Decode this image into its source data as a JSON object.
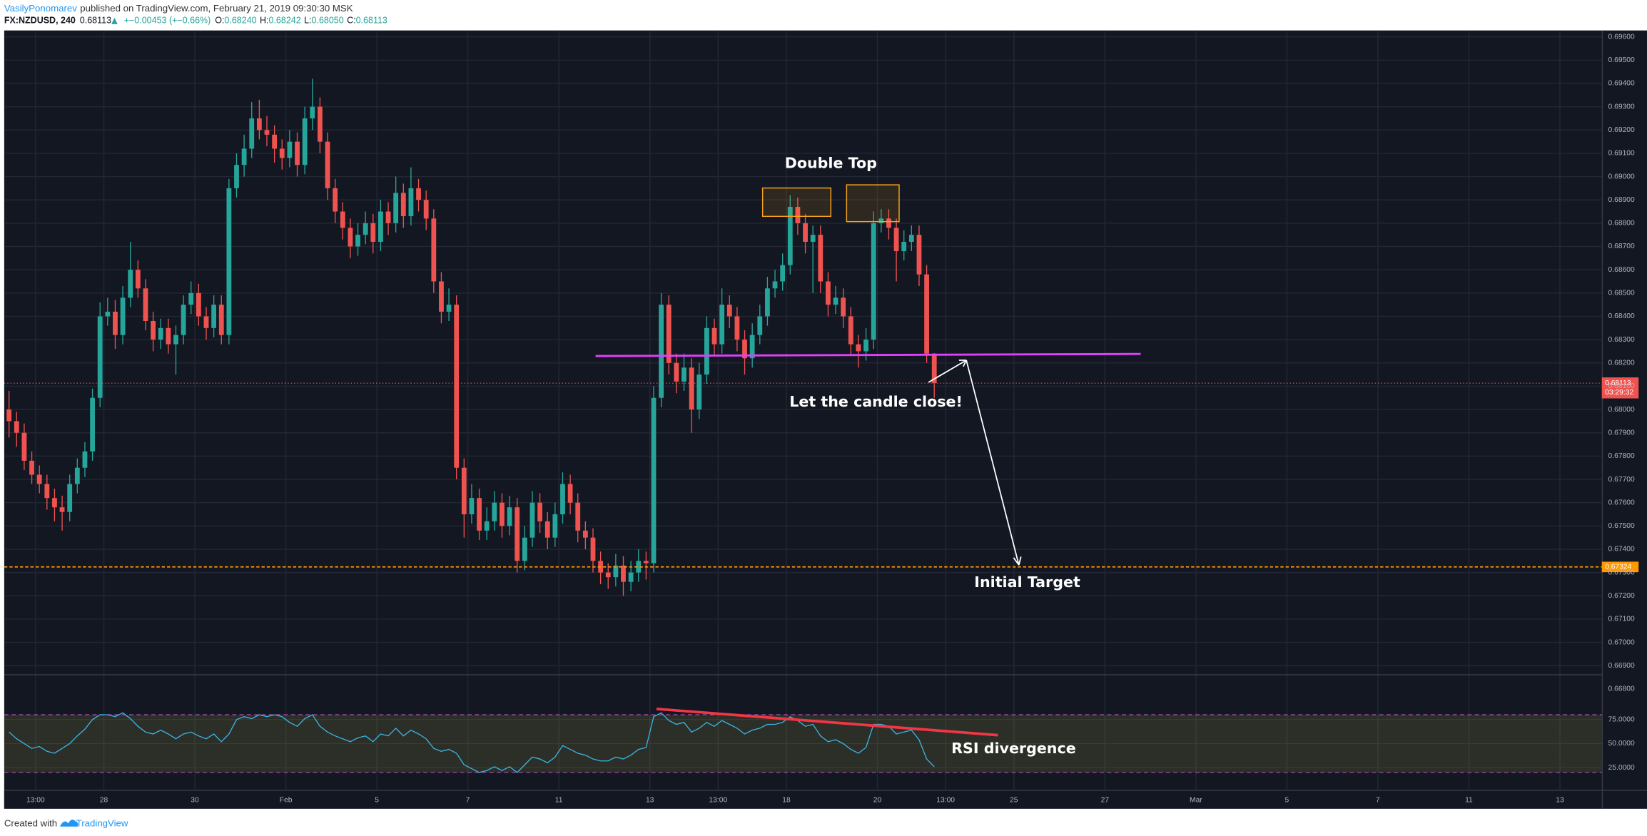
{
  "header": {
    "author": "VasilyPonomarev",
    "published": "published on TradingView.com, February 21, 2019 09:30:30 MSK",
    "symbol": "FX:NZDUSD, 240",
    "price": "0.68113",
    "change": "+−0.00453 (+−0.66%)",
    "ohlc": [
      {
        "label": "O:",
        "value": "0.68240"
      },
      {
        "label": "H:",
        "value": "0.68242"
      },
      {
        "label": "L:",
        "value": "0.68050"
      },
      {
        "label": "C:",
        "value": "0.68113"
      }
    ]
  },
  "annotations": {
    "double_top": "Double Top",
    "candle_close": "Let the candle close!",
    "target": "Initial Target",
    "rsi": "RSI divergence"
  },
  "footer": {
    "prefix": "Created with",
    "brand": "TradingView"
  },
  "chart_data": [
    {
      "type": "candlestick",
      "up_color": "#26a69a",
      "down_color": "#ef5350",
      "grid": true,
      "xlim": [
        0,
        210
      ],
      "xticks": [
        {
          "value": 4,
          "label": "13:00"
        },
        {
          "value": 13,
          "label": "28"
        },
        {
          "value": 25,
          "label": "30"
        },
        {
          "value": 37,
          "label": "Feb"
        },
        {
          "value": 49,
          "label": "5"
        },
        {
          "value": 61,
          "label": "7"
        },
        {
          "value": 73,
          "label": "11"
        },
        {
          "value": 85,
          "label": "13"
        },
        {
          "value": 94,
          "label": "13:00"
        },
        {
          "value": 103,
          "label": "18"
        },
        {
          "value": 115,
          "label": "20"
        },
        {
          "value": 124,
          "label": "13:00"
        },
        {
          "value": 133,
          "label": "25"
        },
        {
          "value": 145,
          "label": "27"
        },
        {
          "value": 157,
          "label": "Mar"
        },
        {
          "value": 169,
          "label": "5"
        },
        {
          "value": 181,
          "label": "7"
        },
        {
          "value": 193,
          "label": "11"
        },
        {
          "value": 205,
          "label": "13"
        }
      ],
      "ylim": [
        0.66773,
        0.69623
      ],
      "yticks": [
        {
          "value": 0.696,
          "label": "0.69600"
        },
        {
          "value": 0.695,
          "label": "0.69500"
        },
        {
          "value": 0.694,
          "label": "0.69400"
        },
        {
          "value": 0.693,
          "label": "0.69300"
        },
        {
          "value": 0.692,
          "label": "0.69200"
        },
        {
          "value": 0.691,
          "label": "0.69100"
        },
        {
          "value": 0.69,
          "label": "0.69000"
        },
        {
          "value": 0.689,
          "label": "0.68900"
        },
        {
          "value": 0.688,
          "label": "0.68800"
        },
        {
          "value": 0.687,
          "label": "0.68700"
        },
        {
          "value": 0.686,
          "label": "0.68600"
        },
        {
          "value": 0.685,
          "label": "0.68500"
        },
        {
          "value": 0.684,
          "label": "0.68400"
        },
        {
          "value": 0.683,
          "label": "0.68300"
        },
        {
          "value": 0.682,
          "label": "0.68200"
        },
        {
          "value": 0.681,
          "label": "0.68100"
        },
        {
          "value": 0.68,
          "label": "0.68000"
        },
        {
          "value": 0.679,
          "label": "0.67900"
        },
        {
          "value": 0.678,
          "label": "0.67800"
        },
        {
          "value": 0.677,
          "label": "0.67700"
        },
        {
          "value": 0.676,
          "label": "0.67600"
        },
        {
          "value": 0.675,
          "label": "0.67500"
        },
        {
          "value": 0.674,
          "label": "0.67400"
        },
        {
          "value": 0.673,
          "label": "0.67300"
        },
        {
          "value": 0.672,
          "label": "0.67200"
        },
        {
          "value": 0.671,
          "label": "0.67100"
        },
        {
          "value": 0.67,
          "label": "0.67000"
        },
        {
          "value": 0.669,
          "label": "0.66900"
        },
        {
          "value": 0.668,
          "label": "0.66800"
        }
      ],
      "last_price": {
        "value": 0.68113,
        "label": "0.68113"
      },
      "countdown": "03:29:32",
      "target_line": {
        "value": 0.67324,
        "label": "0.67324"
      },
      "candles": [
        [
          0.68,
          0.6808,
          0.6788,
          0.6795
        ],
        [
          0.6795,
          0.6799,
          0.6784,
          0.679
        ],
        [
          0.679,
          0.6794,
          0.6774,
          0.6778
        ],
        [
          0.6778,
          0.6782,
          0.6768,
          0.6772
        ],
        [
          0.6772,
          0.6776,
          0.6764,
          0.6768
        ],
        [
          0.6768,
          0.6772,
          0.6757,
          0.6762
        ],
        [
          0.6762,
          0.6766,
          0.6752,
          0.6758
        ],
        [
          0.6758,
          0.6763,
          0.6748,
          0.6756
        ],
        [
          0.6756,
          0.6772,
          0.6752,
          0.6768
        ],
        [
          0.6768,
          0.6779,
          0.6764,
          0.6775
        ],
        [
          0.6775,
          0.6786,
          0.6771,
          0.6782
        ],
        [
          0.6782,
          0.6809,
          0.6778,
          0.6805
        ],
        [
          0.6805,
          0.6846,
          0.6801,
          0.684
        ],
        [
          0.684,
          0.6848,
          0.6836,
          0.6842
        ],
        [
          0.6842,
          0.6847,
          0.6826,
          0.6832
        ],
        [
          0.6832,
          0.6853,
          0.6828,
          0.6848
        ],
        [
          0.6848,
          0.6872,
          0.6844,
          0.686
        ],
        [
          0.686,
          0.6864,
          0.6848,
          0.6852
        ],
        [
          0.6852,
          0.6856,
          0.6834,
          0.6838
        ],
        [
          0.6838,
          0.6842,
          0.6825,
          0.683
        ],
        [
          0.683,
          0.6839,
          0.6826,
          0.6835
        ],
        [
          0.6835,
          0.6839,
          0.6824,
          0.6828
        ],
        [
          0.6828,
          0.6836,
          0.6815,
          0.6832
        ],
        [
          0.6832,
          0.6849,
          0.6828,
          0.6845
        ],
        [
          0.6845,
          0.6855,
          0.6841,
          0.685
        ],
        [
          0.685,
          0.6854,
          0.6836,
          0.684
        ],
        [
          0.684,
          0.6844,
          0.683,
          0.6835
        ],
        [
          0.6835,
          0.6849,
          0.6831,
          0.6845
        ],
        [
          0.6845,
          0.6849,
          0.6828,
          0.6832
        ],
        [
          0.6832,
          0.6899,
          0.6828,
          0.6895
        ],
        [
          0.6895,
          0.691,
          0.6891,
          0.6905
        ],
        [
          0.6905,
          0.6918,
          0.69,
          0.6912
        ],
        [
          0.6912,
          0.6932,
          0.6908,
          0.6925
        ],
        [
          0.6925,
          0.6933,
          0.6916,
          0.692
        ],
        [
          0.692,
          0.6926,
          0.6913,
          0.6918
        ],
        [
          0.6918,
          0.6922,
          0.6906,
          0.6912
        ],
        [
          0.6912,
          0.6916,
          0.6903,
          0.6908
        ],
        [
          0.6908,
          0.692,
          0.6904,
          0.6915
        ],
        [
          0.6915,
          0.6919,
          0.69,
          0.6905
        ],
        [
          0.6905,
          0.693,
          0.6901,
          0.6925
        ],
        [
          0.6925,
          0.6942,
          0.692,
          0.693
        ],
        [
          0.693,
          0.6934,
          0.691,
          0.6915
        ],
        [
          0.6915,
          0.6919,
          0.689,
          0.6895
        ],
        [
          0.6895,
          0.6899,
          0.688,
          0.6885
        ],
        [
          0.6885,
          0.6889,
          0.6873,
          0.6878
        ],
        [
          0.6878,
          0.6882,
          0.6865,
          0.687
        ],
        [
          0.687,
          0.688,
          0.6866,
          0.6875
        ],
        [
          0.6875,
          0.6885,
          0.6871,
          0.688
        ],
        [
          0.688,
          0.6884,
          0.6867,
          0.6872
        ],
        [
          0.6872,
          0.689,
          0.6868,
          0.6885
        ],
        [
          0.6885,
          0.6889,
          0.6875,
          0.688
        ],
        [
          0.688,
          0.69,
          0.6876,
          0.6893
        ],
        [
          0.6893,
          0.6897,
          0.6878,
          0.6883
        ],
        [
          0.6883,
          0.6904,
          0.6879,
          0.6895
        ],
        [
          0.6895,
          0.6899,
          0.6885,
          0.689
        ],
        [
          0.689,
          0.6894,
          0.6877,
          0.6882
        ],
        [
          0.6882,
          0.6886,
          0.685,
          0.6855
        ],
        [
          0.6855,
          0.6859,
          0.6837,
          0.6842
        ],
        [
          0.6842,
          0.6852,
          0.6838,
          0.6845
        ],
        [
          0.6845,
          0.6849,
          0.677,
          0.6775
        ],
        [
          0.6775,
          0.6779,
          0.6745,
          0.6755
        ],
        [
          0.6755,
          0.6768,
          0.6751,
          0.6762
        ],
        [
          0.6762,
          0.6766,
          0.6744,
          0.6748
        ],
        [
          0.6748,
          0.6758,
          0.6744,
          0.6752
        ],
        [
          0.6752,
          0.6765,
          0.6748,
          0.676
        ],
        [
          0.676,
          0.6764,
          0.6745,
          0.675
        ],
        [
          0.675,
          0.6763,
          0.6746,
          0.6758
        ],
        [
          0.6758,
          0.6762,
          0.673,
          0.6735
        ],
        [
          0.6735,
          0.675,
          0.6731,
          0.6745
        ],
        [
          0.6745,
          0.6765,
          0.6741,
          0.676
        ],
        [
          0.676,
          0.6764,
          0.6747,
          0.6752
        ],
        [
          0.6752,
          0.6756,
          0.674,
          0.6745
        ],
        [
          0.6745,
          0.676,
          0.6741,
          0.6755
        ],
        [
          0.6755,
          0.6773,
          0.6751,
          0.6768
        ],
        [
          0.6768,
          0.6772,
          0.6755,
          0.676
        ],
        [
          0.676,
          0.6764,
          0.6743,
          0.6748
        ],
        [
          0.6748,
          0.6752,
          0.674,
          0.6745
        ],
        [
          0.6745,
          0.6749,
          0.673,
          0.6735
        ],
        [
          0.6735,
          0.6739,
          0.6725,
          0.673
        ],
        [
          0.673,
          0.6734,
          0.6723,
          0.6728
        ],
        [
          0.6728,
          0.6738,
          0.6724,
          0.6733
        ],
        [
          0.6733,
          0.6737,
          0.672,
          0.6726
        ],
        [
          0.6726,
          0.6735,
          0.6722,
          0.673
        ],
        [
          0.673,
          0.674,
          0.6726,
          0.6735
        ],
        [
          0.6735,
          0.6739,
          0.6727,
          0.6734
        ],
        [
          0.6734,
          0.681,
          0.673,
          0.6805
        ],
        [
          0.6805,
          0.685,
          0.6801,
          0.6845
        ],
        [
          0.6845,
          0.6849,
          0.6815,
          0.682
        ],
        [
          0.682,
          0.6824,
          0.6807,
          0.6812
        ],
        [
          0.6812,
          0.6824,
          0.6808,
          0.6818
        ],
        [
          0.6818,
          0.6822,
          0.679,
          0.68
        ],
        [
          0.68,
          0.682,
          0.6796,
          0.6815
        ],
        [
          0.6815,
          0.684,
          0.6811,
          0.6835
        ],
        [
          0.6835,
          0.6839,
          0.6823,
          0.6828
        ],
        [
          0.6828,
          0.6852,
          0.6824,
          0.6845
        ],
        [
          0.6845,
          0.6849,
          0.6835,
          0.684
        ],
        [
          0.684,
          0.6844,
          0.6825,
          0.683
        ],
        [
          0.683,
          0.6834,
          0.6815,
          0.6822
        ],
        [
          0.6822,
          0.6837,
          0.6818,
          0.6832
        ],
        [
          0.6832,
          0.6845,
          0.6828,
          0.684
        ],
        [
          0.684,
          0.6857,
          0.6836,
          0.6852
        ],
        [
          0.6852,
          0.686,
          0.6848,
          0.6855
        ],
        [
          0.6855,
          0.6867,
          0.6851,
          0.6862
        ],
        [
          0.6862,
          0.6892,
          0.6858,
          0.6887
        ],
        [
          0.6887,
          0.6891,
          0.6875,
          0.688
        ],
        [
          0.688,
          0.6884,
          0.6867,
          0.6872
        ],
        [
          0.6872,
          0.6879,
          0.685,
          0.6875
        ],
        [
          0.6875,
          0.6879,
          0.685,
          0.6855
        ],
        [
          0.6855,
          0.6859,
          0.684,
          0.6845
        ],
        [
          0.6845,
          0.6853,
          0.6841,
          0.6848
        ],
        [
          0.6848,
          0.6852,
          0.6835,
          0.684
        ],
        [
          0.684,
          0.6844,
          0.6823,
          0.6828
        ],
        [
          0.6828,
          0.6832,
          0.6818,
          0.6825
        ],
        [
          0.6825,
          0.6835,
          0.6821,
          0.683
        ],
        [
          0.683,
          0.6885,
          0.6826,
          0.688
        ],
        [
          0.688,
          0.6886,
          0.6876,
          0.6882
        ],
        [
          0.6882,
          0.6886,
          0.6873,
          0.6878
        ],
        [
          0.6878,
          0.6882,
          0.6855,
          0.6868
        ],
        [
          0.6868,
          0.6877,
          0.6864,
          0.6872
        ],
        [
          0.6872,
          0.6879,
          0.6868,
          0.6875
        ],
        [
          0.6875,
          0.6879,
          0.6853,
          0.6858
        ],
        [
          0.6858,
          0.6862,
          0.682,
          0.6824
        ],
        [
          0.6824,
          0.68242,
          0.6805,
          0.68113
        ]
      ]
    },
    {
      "type": "line",
      "color": "#3bb3e4",
      "band": [
        20,
        80
      ],
      "band_color": "#a0a040",
      "ylim": [
        2,
        121
      ],
      "yticks": [
        {
          "value": 75,
          "label": "75.0000"
        },
        {
          "value": 50,
          "label": "50.0000"
        },
        {
          "value": 25,
          "label": "25.0000"
        }
      ],
      "values": [
        62,
        55,
        50,
        45,
        47,
        42,
        40,
        45,
        50,
        58,
        65,
        75,
        80,
        80,
        78,
        82,
        76,
        68,
        62,
        60,
        64,
        60,
        55,
        60,
        62,
        58,
        55,
        60,
        52,
        60,
        75,
        78,
        76,
        80,
        78,
        80,
        78,
        72,
        68,
        76,
        80,
        68,
        62,
        58,
        55,
        52,
        56,
        58,
        52,
        60,
        58,
        66,
        58,
        64,
        60,
        55,
        45,
        42,
        44,
        40,
        28,
        24,
        20,
        22,
        26,
        22,
        26,
        20,
        28,
        36,
        34,
        30,
        36,
        48,
        44,
        40,
        38,
        34,
        32,
        32,
        36,
        34,
        38,
        44,
        46,
        78,
        82,
        74,
        70,
        72,
        62,
        66,
        72,
        68,
        74,
        70,
        66,
        60,
        64,
        66,
        70,
        70,
        72,
        78,
        74,
        68,
        70,
        58,
        52,
        54,
        50,
        44,
        40,
        46,
        70,
        70,
        68,
        60,
        62,
        64,
        54,
        34,
        26
      ]
    }
  ]
}
